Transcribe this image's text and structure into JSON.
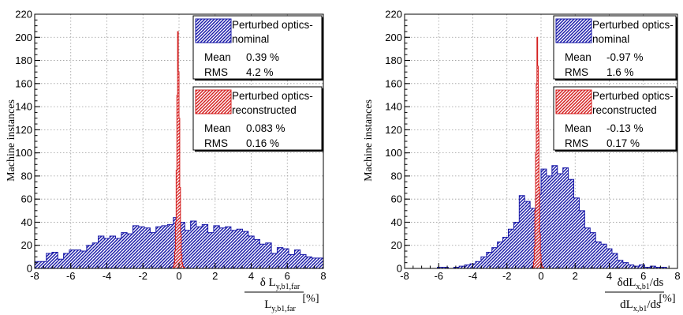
{
  "colors": {
    "nominal": "#1a1aa8",
    "reconstructed": "#d42020",
    "grid": "#9a9a9a",
    "frame": "#000000"
  },
  "chart_data": [
    {
      "type": "bar",
      "subtype": "histogram",
      "ylabel": "Machine instances",
      "xlabel_num": "δ L",
      "xlabel_num_sub": "y,b1,far",
      "xlabel_den": "L",
      "xlabel_den_sub": "y,b1,far",
      "xlabel_unit": "[%]",
      "xlim": [
        -8,
        8
      ],
      "ylim": [
        0,
        220
      ],
      "xticks": [
        -8,
        -6,
        -4,
        -2,
        0,
        2,
        4,
        6,
        8
      ],
      "yticks": [
        0,
        20,
        40,
        60,
        80,
        100,
        120,
        140,
        160,
        180,
        200,
        220
      ],
      "grid": true,
      "bin_width": 0.32,
      "series": [
        {
          "key": "nominal",
          "legend": [
            "Perturbed optics-",
            "nominal"
          ],
          "stats": [
            {
              "label": "Mean",
              "value": "0.39 %"
            },
            {
              "label": "RMS",
              "value": "4.2 %"
            }
          ],
          "x_start": -8.0,
          "values": [
            6,
            6,
            13,
            14,
            8,
            13,
            16,
            16,
            15,
            20,
            22,
            28,
            26,
            28,
            26,
            31,
            30,
            37,
            36,
            35,
            31,
            36,
            37,
            38,
            44,
            40,
            33,
            41,
            36,
            38,
            31,
            37,
            35,
            36,
            33,
            34,
            32,
            28,
            25,
            21,
            22,
            13,
            18,
            17,
            12,
            16,
            12,
            10,
            9,
            9
          ]
        },
        {
          "key": "reconstructed",
          "legend": [
            "Perturbed optics-",
            "reconstructed"
          ],
          "stats": [
            {
              "label": "Mean",
              "value": "0.083 %"
            },
            {
              "label": "RMS",
              "value": "0.16 %"
            }
          ],
          "x_start": -0.32,
          "bin_width": 0.04,
          "values": [
            2,
            5,
            15,
            40,
            85,
            150,
            205,
            170,
            130,
            70,
            30,
            12,
            5,
            2,
            1,
            1
          ]
        }
      ]
    },
    {
      "type": "bar",
      "subtype": "histogram",
      "ylabel": "Machine instances",
      "xlabel_num": "δdL",
      "xlabel_num_sub": "x,b1",
      "xlabel_num_tail": "/ds",
      "xlabel_den": "dL",
      "xlabel_den_sub": "x,b1",
      "xlabel_den_tail": "/ds",
      "xlabel_unit": "[%]",
      "xlim": [
        -8,
        8
      ],
      "ylim": [
        0,
        220
      ],
      "xticks": [
        -8,
        -6,
        -4,
        -2,
        0,
        2,
        4,
        6,
        8
      ],
      "yticks": [
        0,
        20,
        40,
        60,
        80,
        100,
        120,
        140,
        160,
        180,
        200,
        220
      ],
      "grid": true,
      "bin_width": 0.32,
      "series": [
        {
          "key": "nominal",
          "legend": [
            "Perturbed optics-",
            "nominal"
          ],
          "stats": [
            {
              "label": "Mean",
              "value": "-0.97 %"
            },
            {
              "label": "RMS",
              "value": "1.6 %"
            }
          ],
          "x_start": -8.0,
          "values": [
            0,
            0,
            0,
            0,
            0,
            0,
            1,
            1,
            0,
            1,
            2,
            3,
            4,
            6,
            10,
            14,
            18,
            23,
            27,
            34,
            40,
            63,
            58,
            52,
            64,
            86,
            80,
            89,
            82,
            87,
            77,
            61,
            50,
            35,
            31,
            23,
            21,
            17,
            13,
            7,
            5,
            3,
            2,
            3,
            1,
            2,
            1,
            1,
            0,
            0
          ]
        },
        {
          "key": "reconstructed",
          "legend": [
            "Perturbed optics-",
            "reconstructed"
          ],
          "stats": [
            {
              "label": "Mean",
              "value": "-0.13 %"
            },
            {
              "label": "RMS",
              "value": "0.17 %"
            }
          ],
          "x_start": -0.48,
          "bin_width": 0.04,
          "values": [
            2,
            6,
            18,
            50,
            100,
            160,
            200,
            175,
            120,
            70,
            30,
            12,
            5,
            2,
            1,
            1
          ]
        }
      ]
    }
  ]
}
